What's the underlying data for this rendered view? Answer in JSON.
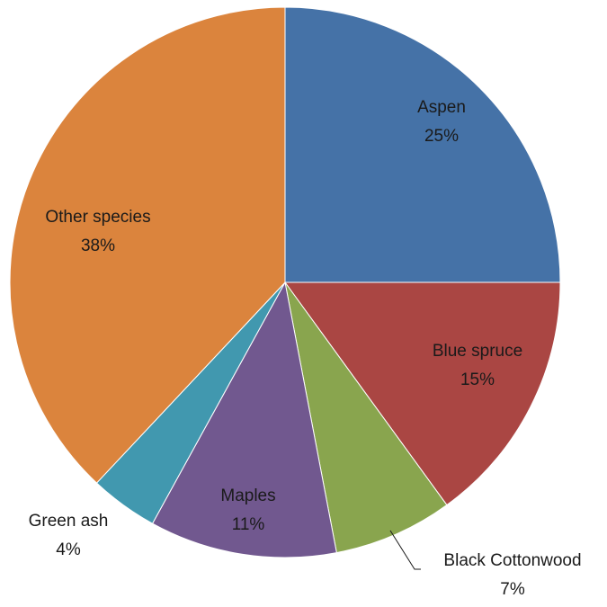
{
  "chart_data": {
    "type": "pie",
    "start_angle_deg": 0,
    "direction": "clockwise",
    "slices": [
      {
        "label": "Aspen",
        "value": 25,
        "value_label": "25%",
        "color": "#4572a7",
        "label_pos": "inside"
      },
      {
        "label": "Blue spruce",
        "value": 15,
        "value_label": "15%",
        "color": "#aa4643",
        "label_pos": "inside"
      },
      {
        "label": "Black Cottonwood",
        "value": 7,
        "value_label": "7%",
        "color": "#89a54e",
        "label_pos": "outside"
      },
      {
        "label": "Maples",
        "value": 11,
        "value_label": "11%",
        "color": "#71588f",
        "label_pos": "inside"
      },
      {
        "label": "Green ash",
        "value": 4,
        "value_label": "4%",
        "color": "#4198af",
        "label_pos": "outside"
      },
      {
        "label": "Other species",
        "value": 38,
        "value_label": "38%",
        "color": "#db843d",
        "label_pos": "inside"
      }
    ]
  }
}
